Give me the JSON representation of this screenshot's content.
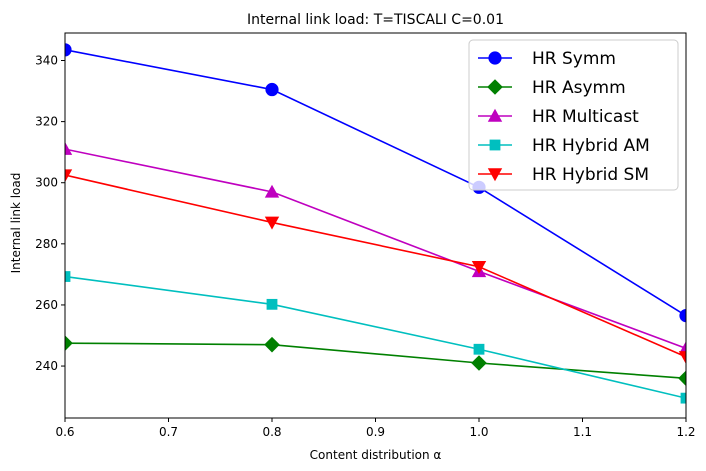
{
  "chart_data": {
    "type": "line",
    "title": "Internal link load: T=TISCALI C=0.01",
    "xlabel": "Content distribution α",
    "ylabel": "Internal link load",
    "xlim": [
      0.6,
      1.2
    ],
    "ylim": [
      223,
      349
    ],
    "x": [
      0.6,
      0.8,
      1.0,
      1.2
    ],
    "xticks": [
      "0.6",
      "0.7",
      "0.8",
      "0.9",
      "1.0",
      "1.1",
      "1.2"
    ],
    "yticks": [
      "240",
      "260",
      "280",
      "300",
      "320",
      "340"
    ],
    "grid": false,
    "legend_position": "top-right",
    "series": [
      {
        "name": "HR Symm",
        "color": "#0000ff",
        "marker": "circle",
        "values": [
          343.5,
          330.5,
          298.5,
          256.5
        ]
      },
      {
        "name": "HR Asymm",
        "color": "#008000",
        "marker": "diamond",
        "values": [
          247.5,
          247.0,
          241.0,
          236.0
        ]
      },
      {
        "name": "HR Multicast",
        "color": "#bf00bf",
        "marker": "triangle-up",
        "values": [
          311.0,
          297.0,
          271.0,
          245.8
        ]
      },
      {
        "name": "HR Hybrid AM",
        "color": "#00bfbf",
        "marker": "square",
        "values": [
          269.3,
          260.2,
          245.5,
          229.5
        ]
      },
      {
        "name": "HR Hybrid SM",
        "color": "#ff0000",
        "marker": "triangle-down",
        "values": [
          302.5,
          287.0,
          272.5,
          243.0
        ]
      }
    ]
  }
}
